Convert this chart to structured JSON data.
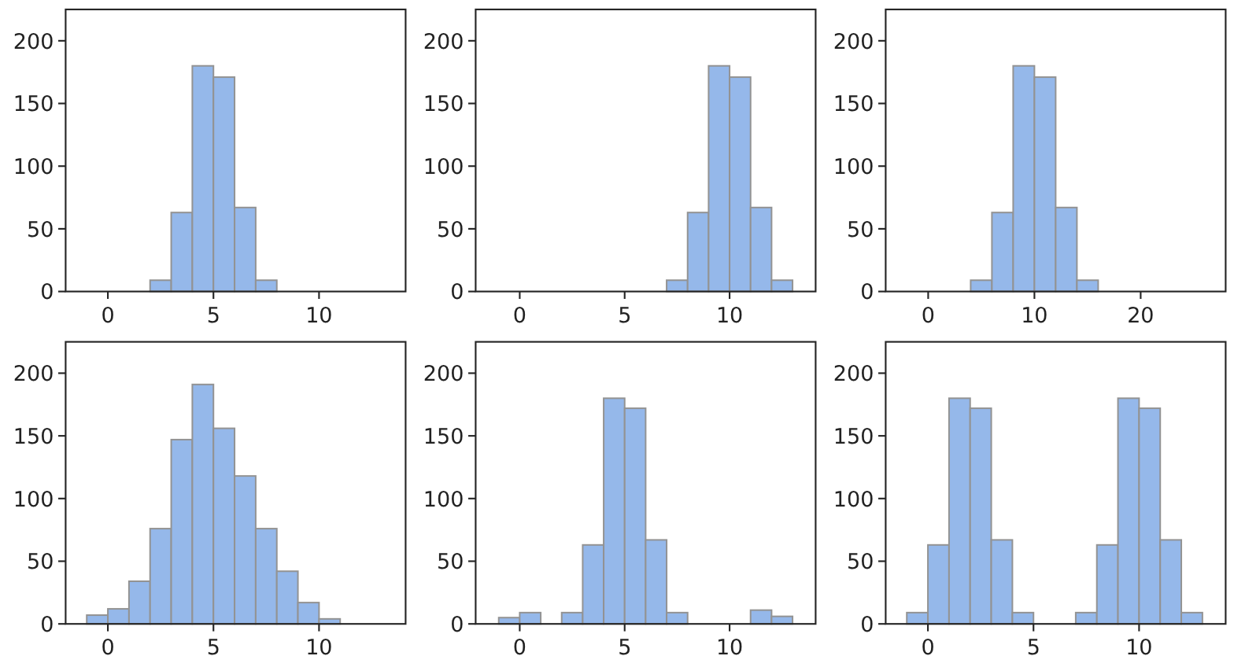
{
  "chart_data": [
    {
      "type": "histogram",
      "bins": [
        2,
        3,
        4,
        5,
        6,
        7,
        8
      ],
      "values": [
        9,
        63,
        180,
        171,
        67,
        9
      ],
      "color": "#95b8ea",
      "xlim": [
        -2,
        14.1
      ],
      "xticks": [
        0,
        5,
        10
      ],
      "ylim": [
        0,
        225
      ],
      "yticks": [
        0,
        50,
        100,
        150,
        200
      ]
    },
    {
      "type": "histogram",
      "bins": [
        7,
        8,
        9,
        10,
        11,
        12,
        13
      ],
      "values": [
        9,
        63,
        180,
        171,
        67,
        9
      ],
      "color": "#95b8ea",
      "xlim": [
        -2.1,
        14.1
      ],
      "xticks": [
        0,
        5,
        10
      ],
      "ylim": [
        0,
        225
      ],
      "yticks": [
        0,
        50,
        100,
        150,
        200
      ]
    },
    {
      "type": "histogram",
      "bins": [
        4,
        6,
        8,
        10,
        12,
        14,
        16
      ],
      "values": [
        9,
        63,
        180,
        171,
        67,
        9
      ],
      "color": "#95b8ea",
      "xlim": [
        -4,
        28
      ],
      "xticks": [
        0,
        10,
        20
      ],
      "ylim": [
        0,
        225
      ],
      "yticks": [
        0,
        50,
        100,
        150,
        200
      ]
    },
    {
      "type": "histogram",
      "bins": [
        -1,
        0,
        1,
        2,
        3,
        4,
        5,
        6,
        7,
        8,
        9,
        10,
        11
      ],
      "values": [
        7,
        12,
        34,
        76,
        147,
        191,
        156,
        118,
        76,
        42,
        17,
        4
      ],
      "color": "#95b8ea",
      "xlim": [
        -2,
        14.1
      ],
      "xticks": [
        0,
        5,
        10
      ],
      "ylim": [
        0,
        225
      ],
      "yticks": [
        0,
        50,
        100,
        150,
        200
      ]
    },
    {
      "type": "histogram",
      "bins": [
        -1,
        0,
        1,
        2,
        3,
        4,
        5,
        6,
        7,
        8,
        9,
        10,
        11,
        12,
        13
      ],
      "values": [
        5,
        9,
        0,
        9,
        63,
        180,
        172,
        67,
        9,
        0,
        0,
        0,
        11,
        6
      ],
      "color": "#95b8ea",
      "xlim": [
        -2.1,
        14.1
      ],
      "xticks": [
        0,
        5,
        10
      ],
      "ylim": [
        0,
        225
      ],
      "yticks": [
        0,
        50,
        100,
        150,
        200
      ]
    },
    {
      "type": "histogram",
      "bins": [
        -1,
        0,
        1,
        2,
        3,
        4,
        5,
        6,
        7,
        8,
        9,
        10,
        11,
        12,
        13
      ],
      "values": [
        9,
        63,
        180,
        172,
        67,
        9,
        0,
        0,
        9,
        63,
        180,
        172,
        67,
        9
      ],
      "color": "#95b8ea",
      "xlim": [
        -2,
        14.1
      ],
      "xticks": [
        0,
        5,
        10
      ],
      "ylim": [
        0,
        225
      ],
      "yticks": [
        0,
        50,
        100,
        150,
        200
      ]
    }
  ]
}
